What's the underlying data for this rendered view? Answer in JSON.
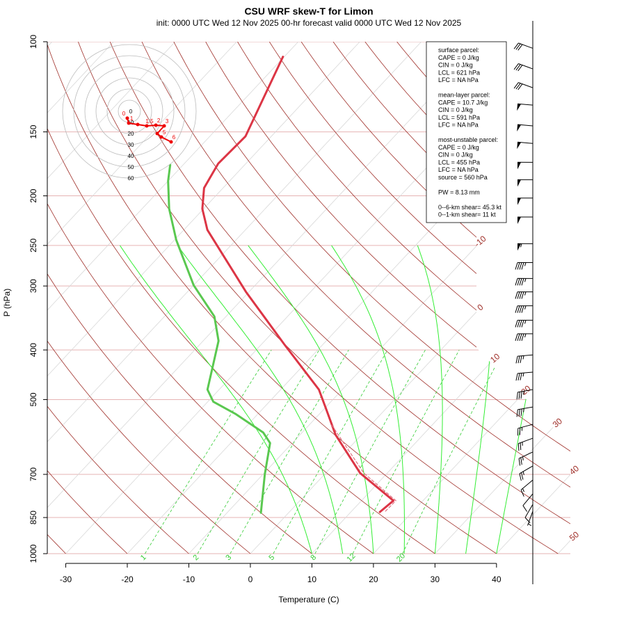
{
  "chart_data": {
    "type": "skewt",
    "title": "CSU WRF skew-T for Limon",
    "subtitle": "init: 0000 UTC Wed 12 Nov 2025    00-hr forecast valid 0000 UTC Wed 12 Nov 2025",
    "xlabel": "Temperature (C)",
    "ylabel": "P (hPa)",
    "xlim": [
      -33,
      52
    ],
    "xticks": [
      -30,
      -20,
      -10,
      0,
      10,
      20,
      30,
      40
    ],
    "ylim": [
      1000,
      100
    ],
    "yticks": [
      100,
      150,
      200,
      250,
      300,
      400,
      500,
      700,
      850,
      1000
    ],
    "log_scale": true,
    "temperature": {
      "color": "#dc3545",
      "p": [
        829,
        788,
        696,
        586,
        517,
        478,
        390,
        308,
        233,
        212,
        193,
        173,
        153,
        128,
        107
      ],
      "values": [
        14.7,
        15.2,
        5.6,
        -4.2,
        -10.1,
        -13.8,
        -26.3,
        -40.5,
        -56.2,
        -60.2,
        -63.1,
        -64.5,
        -64.2,
        -67.2,
        -70.2
      ]
    },
    "dewpoint": {
      "color": "#5ac850",
      "p": [
        832,
        700,
        608,
        580,
        533,
        505,
        478,
        384,
        344,
        299,
        244,
        212,
        187,
        174
      ],
      "values": [
        -4.5,
        -9.7,
        -13.6,
        -16.3,
        -23.7,
        -29.1,
        -31.9,
        -37.5,
        -41.9,
        -50,
        -59.7,
        -65.6,
        -70,
        -72.1
      ]
    },
    "parcel": {
      "color": "#e07080",
      "p": [
        826,
        788,
        696,
        559
      ],
      "values": [
        15.5,
        15.6,
        6.2,
        -6.5
      ]
    },
    "isotherms": [
      -110,
      -100,
      -90,
      -80,
      -70,
      -60,
      -50,
      -40,
      -30,
      -20,
      -10,
      0,
      10,
      20,
      30,
      40,
      50
    ],
    "labeled_isotherms": [
      -10,
      0,
      10,
      20,
      30,
      40,
      50
    ],
    "dry_adiabats": [
      -40,
      -30,
      -20,
      -10,
      0,
      10,
      20,
      30,
      40,
      50,
      60,
      70,
      80,
      90,
      100,
      110,
      120,
      130,
      140,
      150,
      160,
      170,
      180,
      190,
      200
    ],
    "moist_adiabats": [
      10,
      15,
      20,
      25,
      30,
      35,
      40
    ],
    "mixing_ratios": [
      1,
      2,
      3,
      5,
      8,
      12,
      20
    ],
    "winds": {
      "p": [
        103,
        113,
        123,
        133,
        146,
        158,
        172,
        186,
        202,
        220,
        248,
        270,
        290,
        308,
        328,
        350,
        372,
        409,
        442,
        478,
        517,
        559,
        595,
        633,
        674,
        718,
        764,
        801,
        826
      ],
      "speed": [
        30,
        30,
        30,
        50,
        50,
        50,
        50,
        50,
        50,
        50,
        55,
        45,
        45,
        45,
        45,
        45,
        45,
        35,
        35,
        35,
        35,
        25,
        25,
        25,
        25,
        15,
        10,
        10,
        5
      ],
      "direction": [
        290,
        290,
        290,
        275,
        275,
        275,
        270,
        270,
        270,
        270,
        270,
        270,
        270,
        270,
        270,
        270,
        270,
        265,
        265,
        260,
        260,
        255,
        250,
        245,
        240,
        230,
        220,
        210,
        200
      ]
    },
    "hodograph": {
      "rings": [
        0,
        10,
        20,
        30,
        40,
        50,
        60
      ],
      "u": [
        -1.9,
        -0.6,
        7.5,
        15.6,
        23.8,
        31.3,
        25,
        28.8,
        37.5
      ],
      "v": [
        -6.2,
        -10.6,
        -11.9,
        -13.1,
        -12.5,
        -13.1,
        -20,
        -23.1,
        -27.5
      ],
      "labels": [
        "0",
        "1",
        null,
        "1.5",
        "2",
        "3",
        null,
        "5",
        "6"
      ]
    },
    "info": [
      [
        "surface parcel:",
        "CAPE = 0 J/kg",
        "CIN = 0 J/kg",
        "LCL = 621 hPa",
        "LFC = NA hPa"
      ],
      [
        "mean-layer parcel:",
        "CAPE = 10.7 J/kg",
        "CIN = 0 J/kg",
        "LCL = 591 hPa",
        "LFC = NA hPa"
      ],
      [
        "most-unstable parcel:",
        "CAPE = 0 J/kg",
        "CIN = 0 J/kg",
        "LCL = 455 hPa",
        "LFC = NA hPa",
        "source = 560 hPa"
      ],
      [
        "PW =  8.13 mm"
      ],
      [
        "0--6-km shear= 45.3 kt",
        "0--1-km shear= 11 kt"
      ]
    ]
  }
}
